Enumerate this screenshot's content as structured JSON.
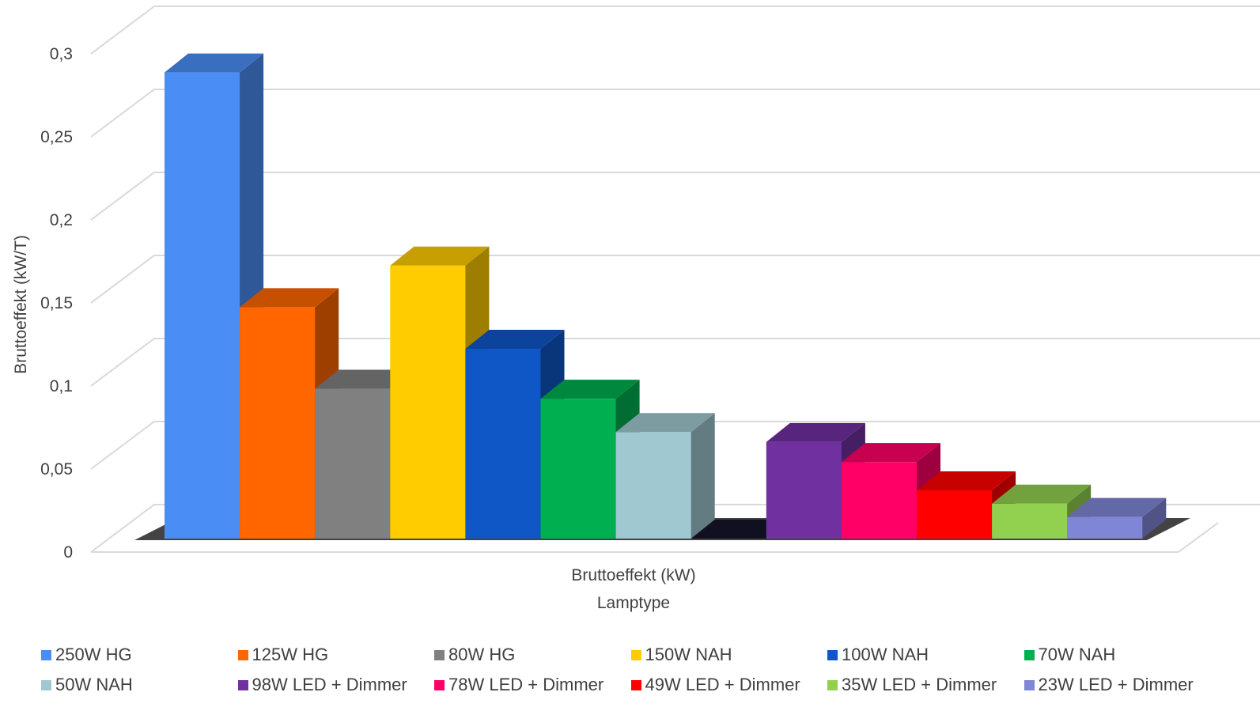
{
  "chart_data": {
    "type": "bar",
    "ylabel": "Bruttoeffekt (kW/T)",
    "xlabel": "Bruttoeffekt (kW)",
    "xlabel2": "Lamptype",
    "ylim": [
      0,
      0.3
    ],
    "yticks": [
      "0",
      "0,05",
      "0,1",
      "0,15",
      "0,2",
      "0,25",
      "0,3"
    ],
    "grid": true,
    "legend_position": "bottom",
    "series": [
      {
        "name": "250W HG",
        "value": 0.28,
        "color": "#4a8ef5"
      },
      {
        "name": "125W HG",
        "value": 0.139,
        "color": "#ff6600"
      },
      {
        "name": "80W HG",
        "value": 0.09,
        "color": "#808080"
      },
      {
        "name": "150W NAH",
        "value": 0.164,
        "color": "#ffcc00"
      },
      {
        "name": "100W NAH",
        "value": 0.114,
        "color": "#0f56c7"
      },
      {
        "name": "70W NAH",
        "value": 0.084,
        "color": "#00b050"
      },
      {
        "name": "50W NAH",
        "value": 0.064,
        "color": "#a0c8d0"
      },
      {
        "name": "",
        "value": 0,
        "color": "#101020"
      },
      {
        "name": "98W LED + Dimmer",
        "value": 0.058,
        "color": "#7030a0"
      },
      {
        "name": "78W LED + Dimmer",
        "value": 0.046,
        "color": "#ff0066"
      },
      {
        "name": "49W LED + Dimmer",
        "value": 0.029,
        "color": "#ff0000"
      },
      {
        "name": "35W LED + Dimmer",
        "value": 0.021,
        "color": "#92d050"
      },
      {
        "name": "23W LED + Dimmer",
        "value": 0.013,
        "color": "#7f86d6"
      }
    ]
  }
}
